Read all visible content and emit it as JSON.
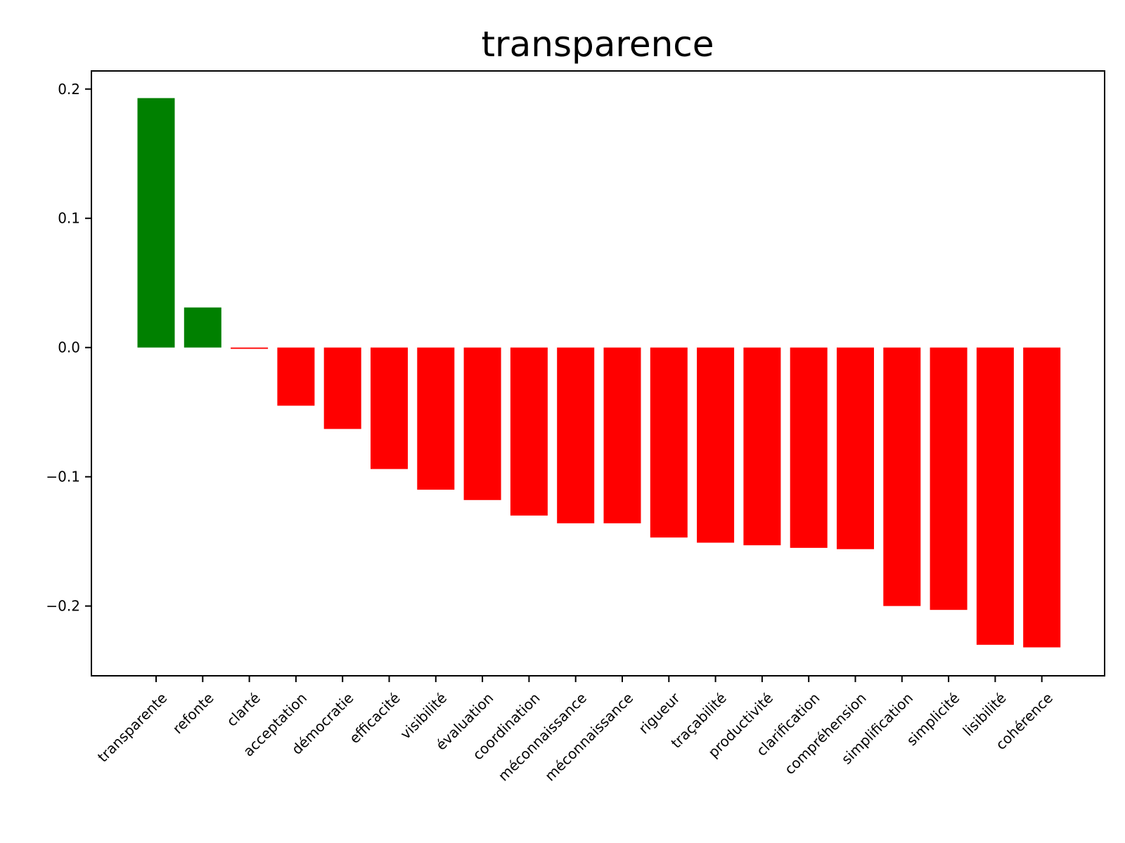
{
  "chart_data": {
    "type": "bar",
    "title": "transparence",
    "xlabel": "",
    "ylabel": "",
    "categories": [
      "transparente",
      "refonte",
      "clarté",
      "acceptation",
      "démocratie",
      "efficacité",
      "visibilité",
      "évaluation",
      "coordination",
      "méconnaissance",
      "méconnaissance",
      "rigueur",
      "traçabilité",
      "productivité",
      "clarification",
      "compréhension",
      "simplification",
      "simplicité",
      "lisibilité",
      "cohérence"
    ],
    "values": [
      0.193,
      0.031,
      -0.001,
      -0.045,
      -0.063,
      -0.094,
      -0.11,
      -0.118,
      -0.13,
      -0.136,
      -0.136,
      -0.147,
      -0.151,
      -0.153,
      -0.155,
      -0.156,
      -0.2,
      -0.203,
      -0.23,
      -0.232
    ],
    "ylim": [
      -0.254,
      0.214
    ],
    "yticks": [
      0.2,
      0.1,
      0.0,
      -0.1,
      -0.2
    ],
    "ytick_labels": [
      "0.2",
      "0.1",
      "0.0",
      "−0.1",
      "−0.2"
    ],
    "positive_color": "#008000",
    "negative_color": "#ff0000",
    "grid": false,
    "legend": "none"
  }
}
